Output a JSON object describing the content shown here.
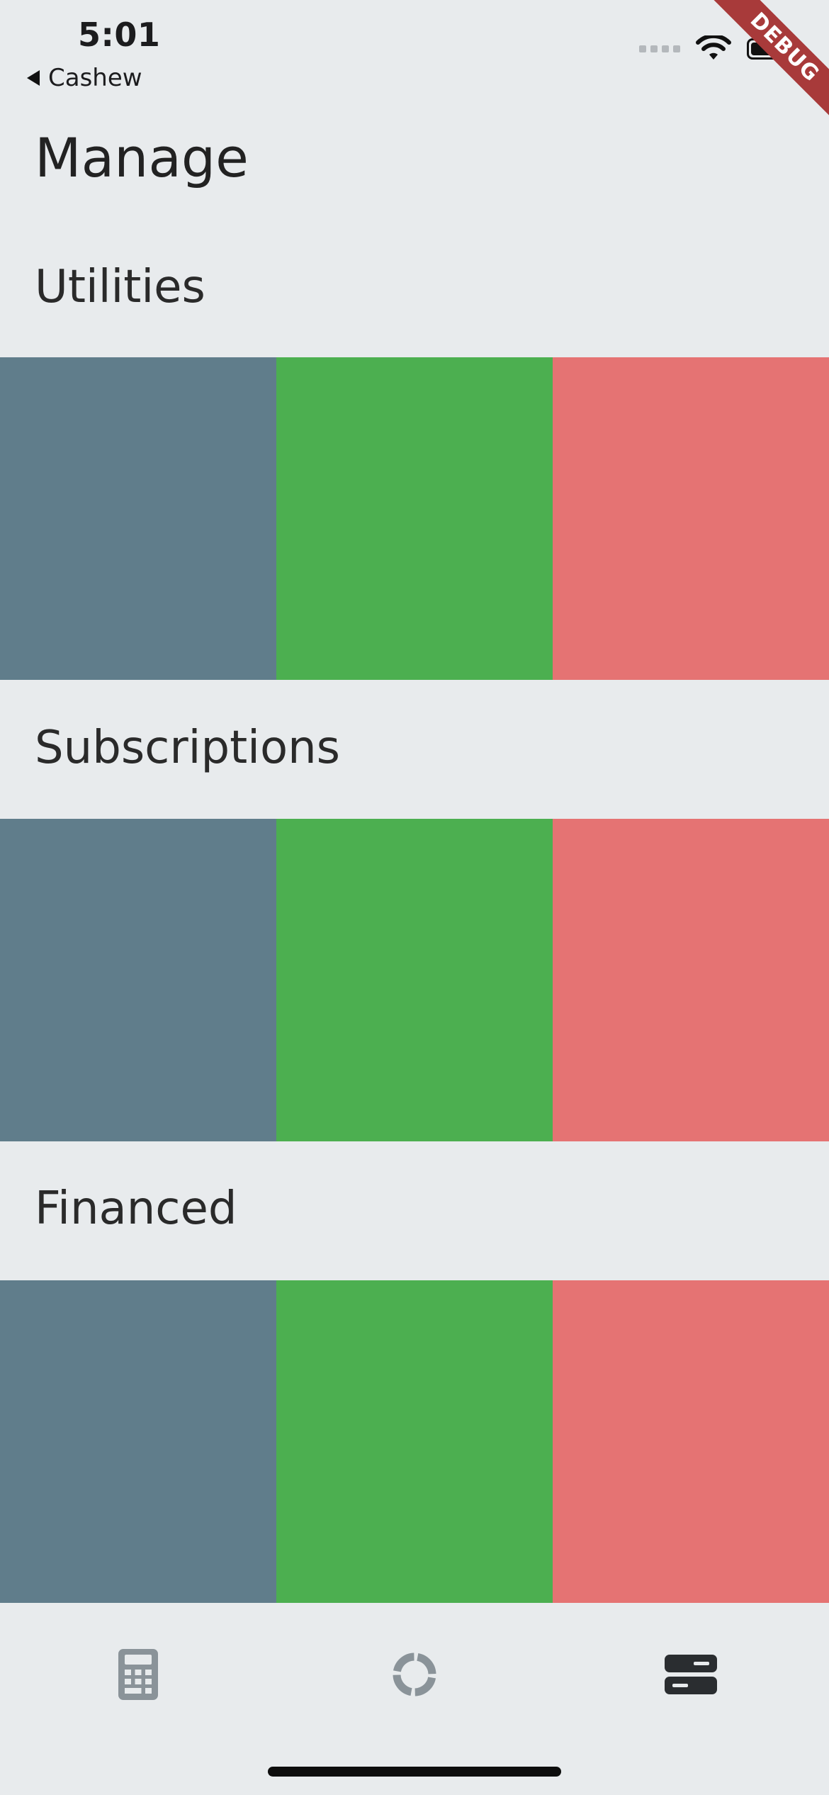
{
  "status_bar": {
    "time": "5:01",
    "back_label": "Cashew"
  },
  "debug_banner": {
    "label": "DEBUG",
    "color": "#a83a3a"
  },
  "page": {
    "title": "Manage"
  },
  "sections": [
    {
      "heading": "Utilities",
      "swatches": [
        "#607d8b",
        "#4caf50",
        "#e57373"
      ]
    },
    {
      "heading": "Subscriptions",
      "swatches": [
        "#607d8b",
        "#4caf50",
        "#e57373"
      ]
    },
    {
      "heading": "Financed",
      "swatches": [
        "#607d8b",
        "#4caf50",
        "#e57373"
      ]
    }
  ],
  "bottom_nav": {
    "items": [
      {
        "icon": "calculator-icon",
        "selected": false
      },
      {
        "icon": "donut-chart-icon",
        "selected": false
      },
      {
        "icon": "manage-icon",
        "selected": true
      }
    ]
  },
  "colors": {
    "background": "#e8ebed",
    "nav_inactive": "#8a9399",
    "nav_active": "#2a2d30"
  }
}
